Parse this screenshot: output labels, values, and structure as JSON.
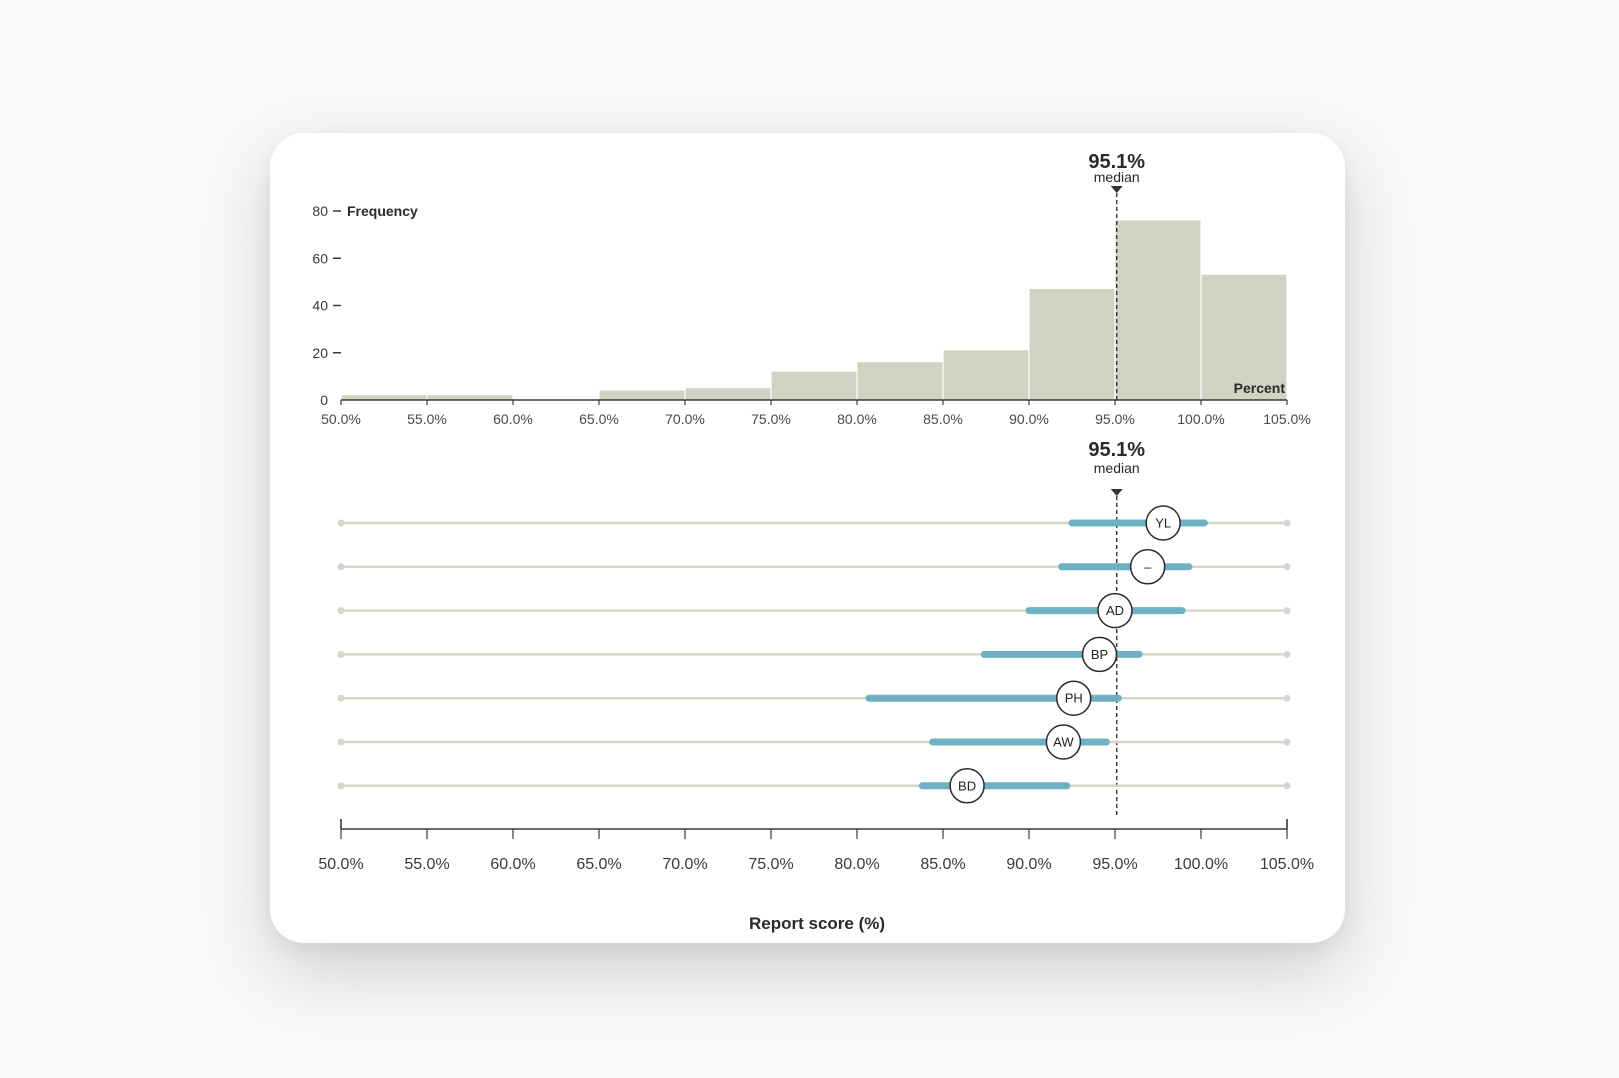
{
  "colors": {
    "histogram_bar": "#d0d2c2",
    "track": "#d6d7cc",
    "range": "#6fb0c2",
    "axis": "#3a3a3a",
    "median_line": "#333333",
    "marker_fill": "#ffffff",
    "marker_stroke": "#2a2a2a"
  },
  "chart_data": [
    {
      "type": "bar",
      "subtype": "histogram",
      "ylabel": "Frequency",
      "xlabel": "Percent",
      "xlim": [
        50,
        105
      ],
      "ylim": [
        0,
        80
      ],
      "y_ticks": [
        "0",
        "20",
        "40",
        "60",
        "80"
      ],
      "x_ticks": [
        "50.0%",
        "55.0%",
        "60.0%",
        "65.0%",
        "70.0%",
        "75.0%",
        "80.0%",
        "85.0%",
        "90.0%",
        "95.0%",
        "100.0%",
        "105.0%"
      ],
      "bins": [
        {
          "start": 50,
          "end": 55,
          "count": 2
        },
        {
          "start": 55,
          "end": 60,
          "count": 2
        },
        {
          "start": 60,
          "end": 65,
          "count": 0
        },
        {
          "start": 65,
          "end": 70,
          "count": 4
        },
        {
          "start": 70,
          "end": 75,
          "count": 5
        },
        {
          "start": 75,
          "end": 80,
          "count": 12
        },
        {
          "start": 80,
          "end": 85,
          "count": 16
        },
        {
          "start": 85,
          "end": 90,
          "count": 21
        },
        {
          "start": 90,
          "end": 95,
          "count": 47
        },
        {
          "start": 95,
          "end": 100,
          "count": 76
        },
        {
          "start": 100,
          "end": 105,
          "count": 53
        }
      ],
      "median": {
        "value": 95.1,
        "label": "95.1%",
        "word": "median"
      }
    },
    {
      "type": "range",
      "xlabel": "Report score (%)",
      "xlim": [
        50,
        105
      ],
      "x_ticks": [
        "50.0%",
        "55.0%",
        "60.0%",
        "65.0%",
        "70.0%",
        "75.0%",
        "80.0%",
        "85.0%",
        "90.0%",
        "95.0%",
        "100.0%",
        "105.0%"
      ],
      "median": {
        "value": 95.1,
        "label": "95.1%",
        "word": "median"
      },
      "rows": [
        {
          "label": "YL",
          "low": 92.5,
          "high": 100.2,
          "score": 97.8
        },
        {
          "label": "–",
          "low": 91.9,
          "high": 99.3,
          "score": 96.9
        },
        {
          "label": "AD",
          "low": 90.0,
          "high": 98.9,
          "score": 95.0
        },
        {
          "label": "BP",
          "low": 87.4,
          "high": 96.4,
          "score": 94.1
        },
        {
          "label": "PH",
          "low": 80.7,
          "high": 95.2,
          "score": 92.6
        },
        {
          "label": "AW",
          "low": 84.4,
          "high": 94.5,
          "score": 92.0
        },
        {
          "label": "BD",
          "low": 83.8,
          "high": 92.2,
          "score": 86.4
        }
      ]
    }
  ]
}
